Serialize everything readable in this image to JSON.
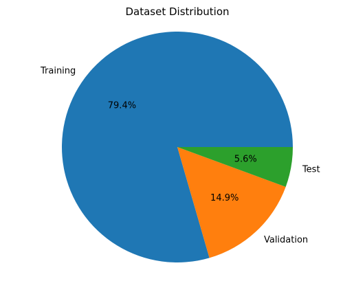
{
  "chart_data": {
    "type": "pie",
    "title": "Dataset Distribution",
    "slices": [
      {
        "label": "Training",
        "value": 79.4,
        "pct_label": "79.4%",
        "color": "#1f77b4"
      },
      {
        "label": "Validation",
        "value": 14.9,
        "pct_label": "14.9%",
        "color": "#ff7f0e"
      },
      {
        "label": "Test",
        "value": 5.6,
        "pct_label": "5.6%",
        "color": "#2ca02c"
      }
    ],
    "start_angle_deg": 0,
    "direction": "counterclockwise",
    "legend": "none"
  }
}
